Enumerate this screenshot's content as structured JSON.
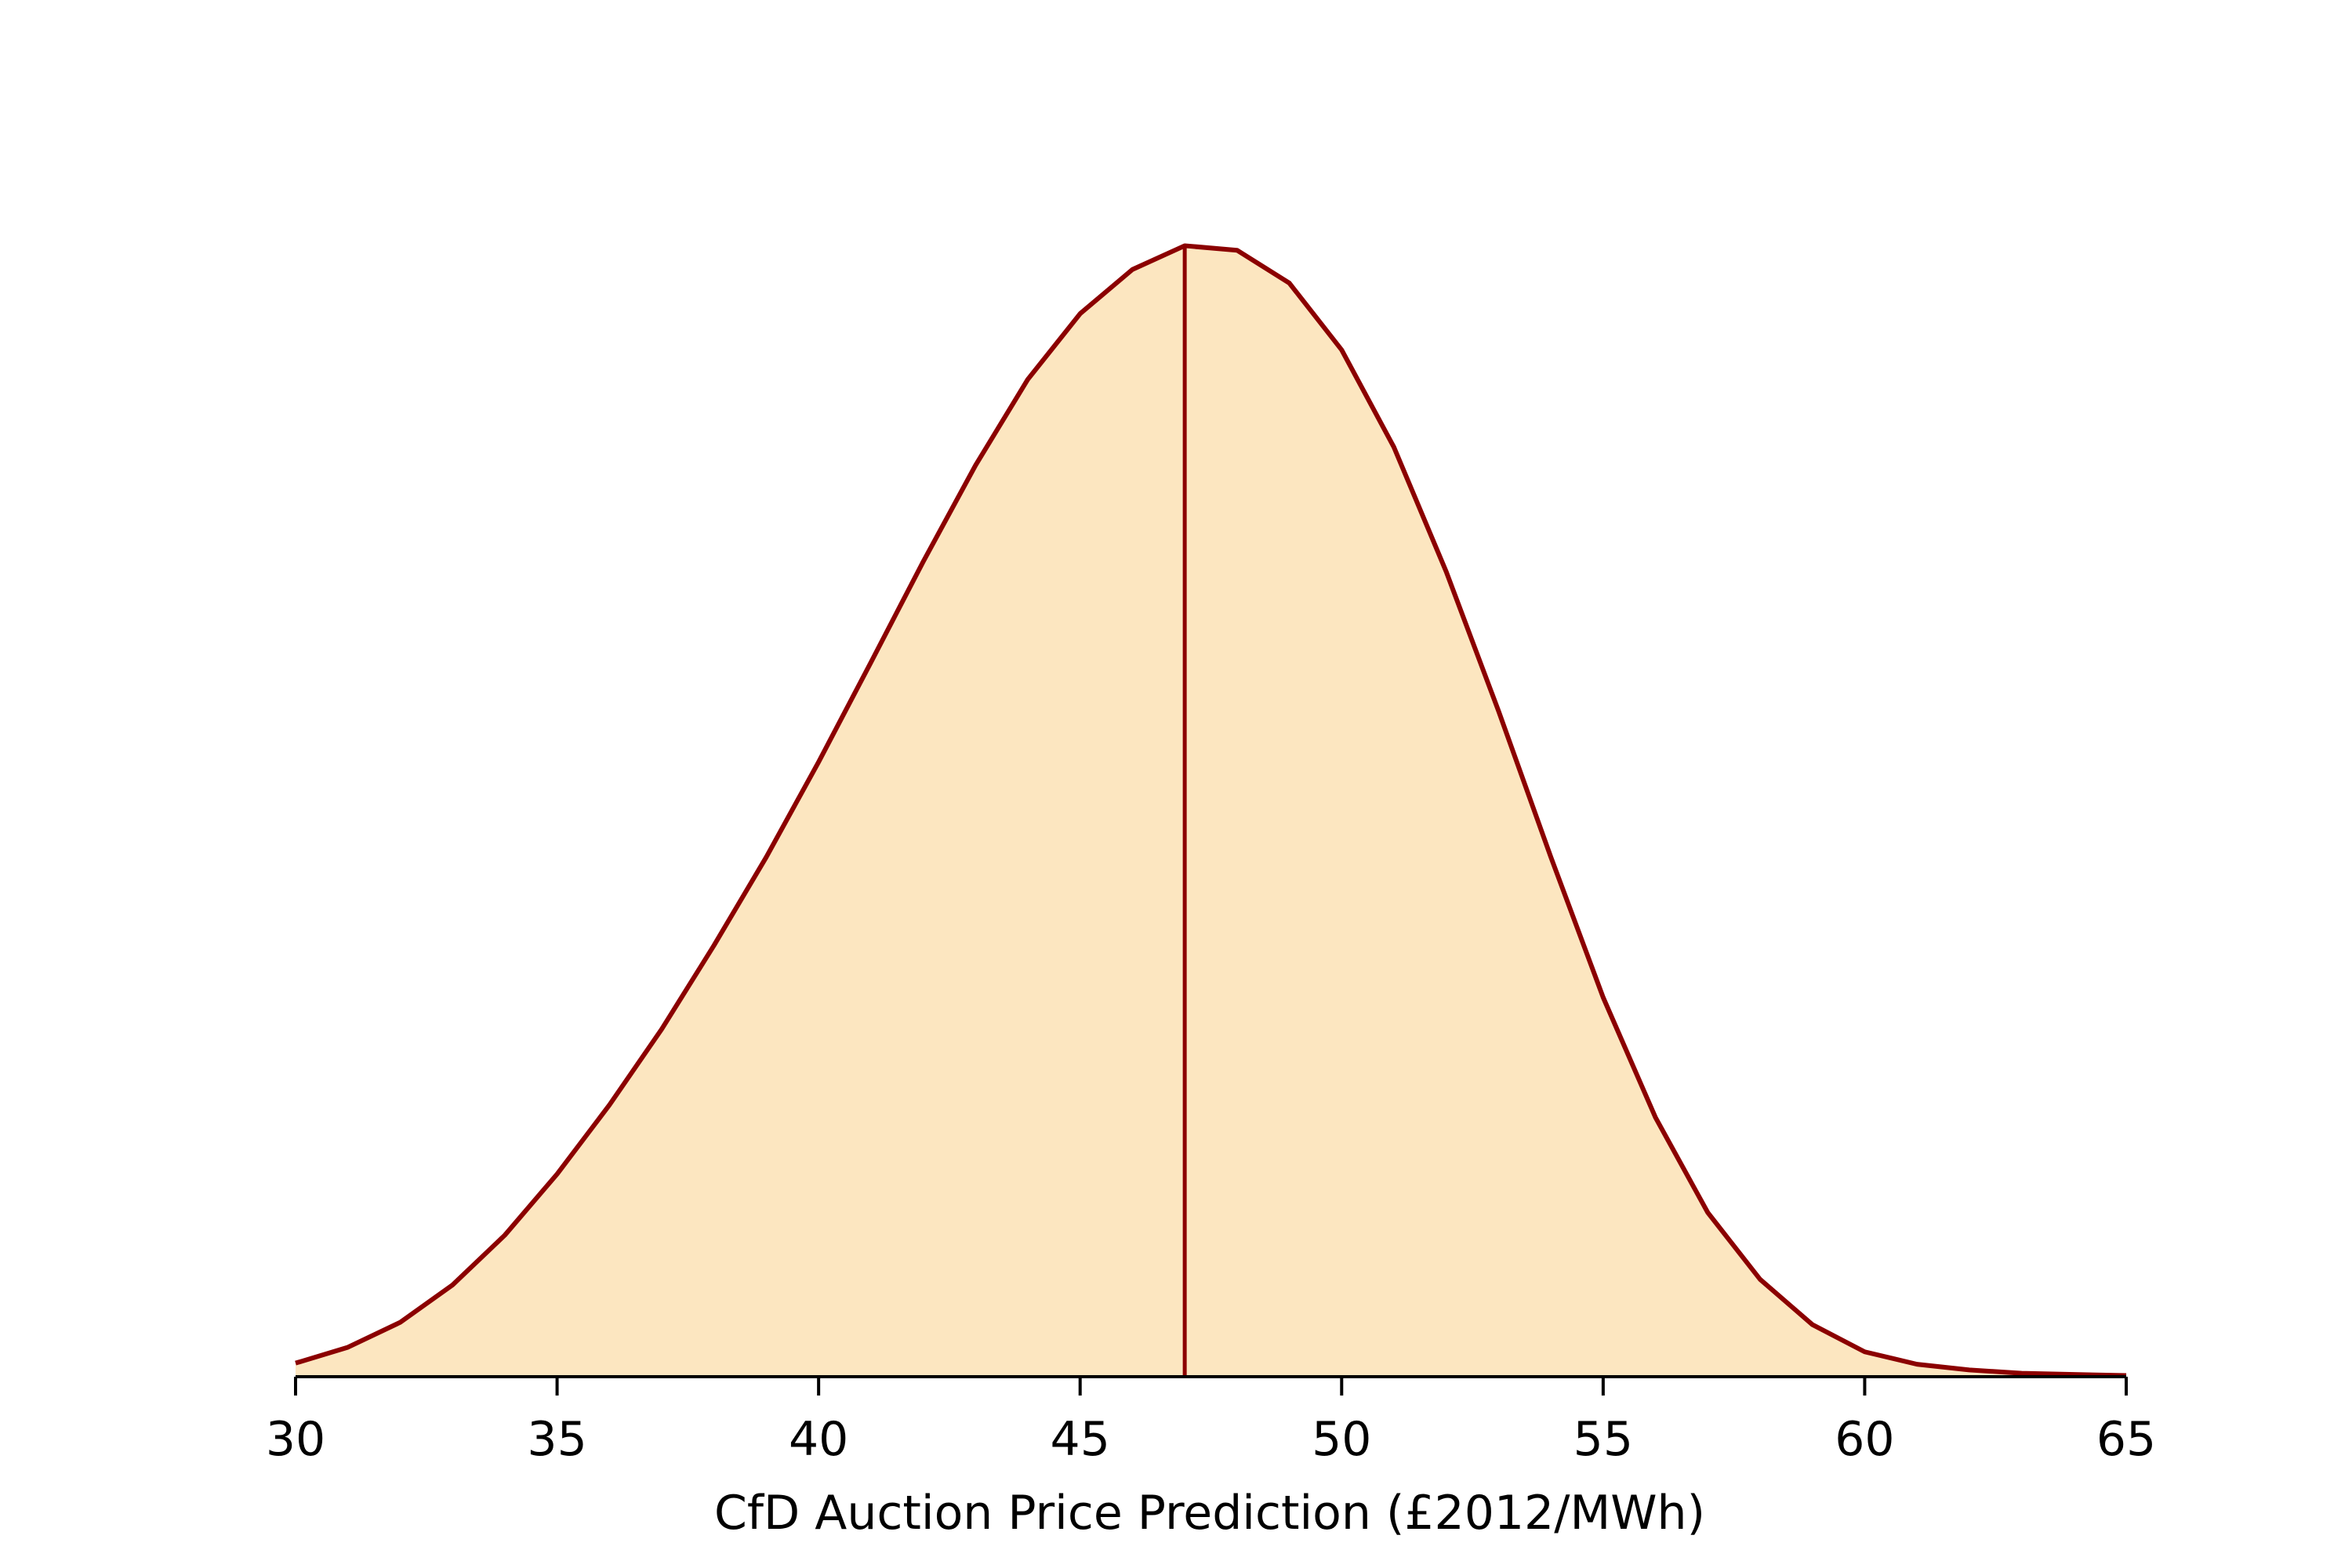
{
  "colors": {
    "fill": "#fce6c0",
    "line": "#8b0000",
    "axis": "#000000"
  },
  "chart_data": {
    "type": "area",
    "title": "",
    "xlabel": "CfD Auction Price Prediction (£2012/MWh)",
    "ylabel": "",
    "xlim": [
      30,
      65
    ],
    "ylim": [
      0,
      1.0
    ],
    "grid": false,
    "y_axis_visible": false,
    "x_ticks": [
      30,
      35,
      40,
      45,
      50,
      55,
      60,
      65
    ],
    "x_tick_labels": [
      "30",
      "35",
      "40",
      "45",
      "50",
      "55",
      "60",
      "65"
    ],
    "series": [
      {
        "x": [
          30,
          31,
          32,
          33,
          34,
          35,
          36,
          37,
          38,
          39,
          40,
          41,
          42,
          43,
          44,
          45,
          46,
          47,
          48,
          49,
          50,
          51,
          52,
          53,
          54,
          55,
          56,
          57,
          58,
          59,
          60,
          61,
          62,
          63,
          64,
          65
        ],
        "y": [
          0.012,
          0.026,
          0.048,
          0.081,
          0.125,
          0.179,
          0.24,
          0.307,
          0.381,
          0.459,
          0.543,
          0.631,
          0.72,
          0.805,
          0.881,
          0.939,
          0.978,
          0.999,
          0.995,
          0.966,
          0.907,
          0.821,
          0.711,
          0.588,
          0.459,
          0.335,
          0.229,
          0.145,
          0.086,
          0.046,
          0.022,
          0.011,
          0.006,
          0.003,
          0.002,
          0.001
        ]
      }
    ],
    "annotations": [
      {
        "type": "vline",
        "x": 47
      }
    ]
  }
}
